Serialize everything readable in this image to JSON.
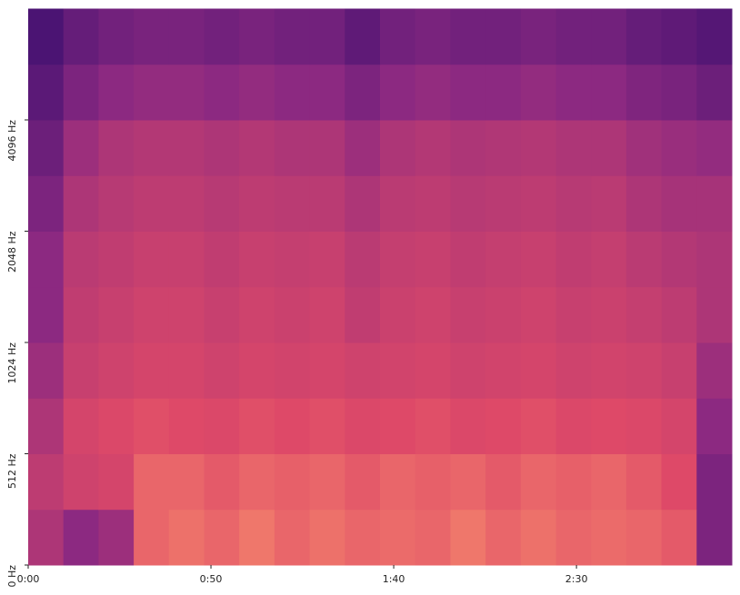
{
  "chart_data": {
    "type": "spectrogram",
    "colormap": "magma",
    "yscale": "symlog",
    "linthresh": 512,
    "xlim": [
      0,
      192.5
    ],
    "xticks": [
      {
        "value": 0,
        "label": "0:00"
      },
      {
        "value": 50,
        "label": "0:50"
      },
      {
        "value": 100,
        "label": "1:40"
      },
      {
        "value": 150,
        "label": "2:30"
      }
    ],
    "ylim": [
      0,
      8192
    ],
    "yticks": [
      {
        "value": 0,
        "label": "0 Hz"
      },
      {
        "value": 512,
        "label": "512 Hz"
      },
      {
        "value": 1024,
        "label": "1024 Hz"
      },
      {
        "value": 2048,
        "label": "2048 Hz"
      },
      {
        "value": 4096,
        "label": "4096 Hz"
      }
    ],
    "z": [
      [
        0.6,
        0.5,
        0.55,
        0.8,
        0.82,
        0.8,
        0.83,
        0.8,
        0.82,
        0.8,
        0.81,
        0.8,
        0.83,
        0.8,
        0.82,
        0.8,
        0.81,
        0.8,
        0.78,
        0.45
      ],
      [
        0.65,
        0.7,
        0.72,
        0.8,
        0.8,
        0.78,
        0.8,
        0.79,
        0.8,
        0.78,
        0.8,
        0.79,
        0.8,
        0.78,
        0.8,
        0.79,
        0.8,
        0.78,
        0.75,
        0.45
      ],
      [
        0.6,
        0.72,
        0.74,
        0.76,
        0.75,
        0.74,
        0.76,
        0.75,
        0.76,
        0.74,
        0.75,
        0.76,
        0.74,
        0.75,
        0.76,
        0.74,
        0.75,
        0.74,
        0.72,
        0.5
      ],
      [
        0.55,
        0.68,
        0.7,
        0.72,
        0.72,
        0.7,
        0.72,
        0.71,
        0.72,
        0.7,
        0.71,
        0.72,
        0.7,
        0.71,
        0.72,
        0.7,
        0.71,
        0.7,
        0.68,
        0.55
      ],
      [
        0.5,
        0.66,
        0.68,
        0.7,
        0.7,
        0.68,
        0.7,
        0.69,
        0.7,
        0.66,
        0.69,
        0.7,
        0.68,
        0.69,
        0.7,
        0.68,
        0.69,
        0.67,
        0.65,
        0.6
      ],
      [
        0.5,
        0.64,
        0.66,
        0.68,
        0.68,
        0.66,
        0.68,
        0.67,
        0.68,
        0.64,
        0.67,
        0.68,
        0.66,
        0.67,
        0.68,
        0.66,
        0.67,
        0.64,
        0.62,
        0.6
      ],
      [
        0.45,
        0.6,
        0.63,
        0.65,
        0.65,
        0.63,
        0.65,
        0.64,
        0.64,
        0.6,
        0.64,
        0.65,
        0.63,
        0.64,
        0.65,
        0.63,
        0.64,
        0.6,
        0.58,
        0.58
      ],
      [
        0.4,
        0.55,
        0.6,
        0.62,
        0.62,
        0.6,
        0.62,
        0.6,
        0.6,
        0.55,
        0.6,
        0.62,
        0.6,
        0.61,
        0.62,
        0.6,
        0.6,
        0.56,
        0.54,
        0.52
      ],
      [
        0.35,
        0.45,
        0.5,
        0.52,
        0.52,
        0.5,
        0.52,
        0.5,
        0.5,
        0.45,
        0.5,
        0.52,
        0.5,
        0.5,
        0.52,
        0.5,
        0.5,
        0.46,
        0.44,
        0.4
      ],
      [
        0.3,
        0.38,
        0.42,
        0.44,
        0.44,
        0.42,
        0.44,
        0.42,
        0.42,
        0.36,
        0.42,
        0.44,
        0.42,
        0.42,
        0.44,
        0.42,
        0.42,
        0.38,
        0.36,
        0.33
      ]
    ]
  }
}
